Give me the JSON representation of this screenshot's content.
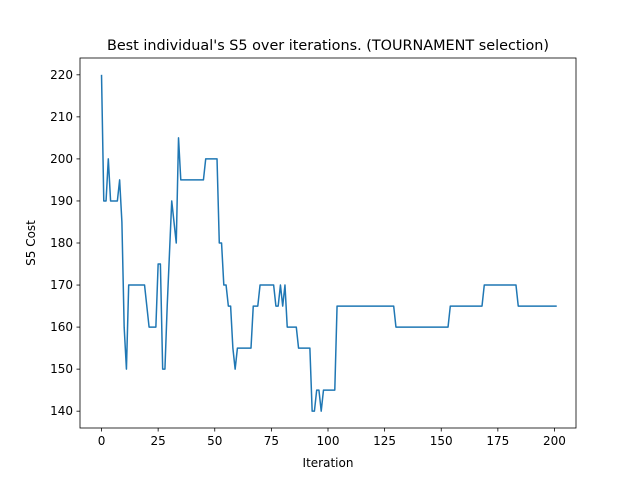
{
  "chart_data": {
    "type": "line",
    "title": "Best individual's S5 over iterations. (TOURNAMENT selection)",
    "xlabel": "Iteration",
    "ylabel": "S5 Cost",
    "xlim": [
      -9.5,
      209.5
    ],
    "ylim": [
      136,
      224
    ],
    "xticks": [
      0,
      25,
      50,
      75,
      100,
      125,
      150,
      175,
      200
    ],
    "yticks": [
      140,
      150,
      160,
      170,
      180,
      190,
      200,
      210,
      220
    ],
    "grid": false,
    "legend": "none",
    "series": [
      {
        "color": "#1f77b4",
        "points": [
          [
            0,
            220
          ],
          [
            1,
            190
          ],
          [
            2,
            190
          ],
          [
            3,
            200
          ],
          [
            4,
            190
          ],
          [
            5,
            190
          ],
          [
            6,
            190
          ],
          [
            7,
            190
          ],
          [
            8,
            195
          ],
          [
            9,
            185
          ],
          [
            10,
            160
          ],
          [
            11,
            150
          ],
          [
            12,
            170
          ],
          [
            13,
            170
          ],
          [
            19,
            170
          ],
          [
            21,
            160
          ],
          [
            24,
            160
          ],
          [
            25,
            175
          ],
          [
            26,
            175
          ],
          [
            27,
            150
          ],
          [
            28,
            150
          ],
          [
            29,
            165
          ],
          [
            31,
            190
          ],
          [
            33,
            180
          ],
          [
            34,
            205
          ],
          [
            35,
            195
          ],
          [
            45,
            195
          ],
          [
            46,
            200
          ],
          [
            51,
            200
          ],
          [
            52,
            180
          ],
          [
            53,
            180
          ],
          [
            54,
            170
          ],
          [
            55,
            170
          ],
          [
            56,
            165
          ],
          [
            57,
            165
          ],
          [
            58,
            155
          ],
          [
            59,
            150
          ],
          [
            60,
            155
          ],
          [
            66,
            155
          ],
          [
            67,
            165
          ],
          [
            69,
            165
          ],
          [
            70,
            170
          ],
          [
            76,
            170
          ],
          [
            77,
            165
          ],
          [
            78,
            165
          ],
          [
            79,
            170
          ],
          [
            80,
            165
          ],
          [
            81,
            170
          ],
          [
            82,
            160
          ],
          [
            86,
            160
          ],
          [
            87,
            155
          ],
          [
            92,
            155
          ],
          [
            93,
            140
          ],
          [
            94,
            140
          ],
          [
            95,
            145
          ],
          [
            96,
            145
          ],
          [
            97,
            140
          ],
          [
            98,
            145
          ],
          [
            103,
            145
          ],
          [
            104,
            165
          ],
          [
            129,
            165
          ],
          [
            130,
            160
          ],
          [
            153,
            160
          ],
          [
            154,
            165
          ],
          [
            168,
            165
          ],
          [
            169,
            170
          ],
          [
            183,
            170
          ],
          [
            184,
            165
          ],
          [
            201,
            165
          ]
        ]
      }
    ]
  }
}
